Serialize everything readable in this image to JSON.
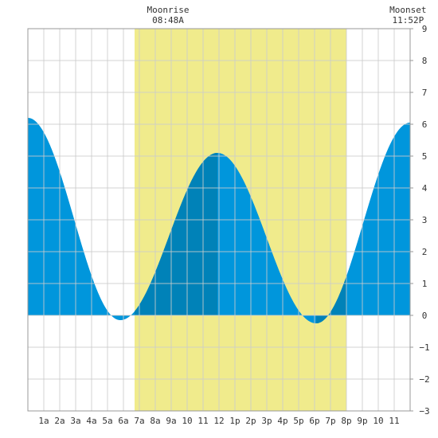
{
  "chart_data": {
    "type": "area",
    "title": "",
    "xlabel": "",
    "ylabel": "",
    "x_unit": "hour of day",
    "xlim": [
      0,
      24
    ],
    "ylim": [
      -3,
      9
    ],
    "y_ticks": [
      -3,
      -2,
      -1,
      0,
      1,
      2,
      3,
      4,
      5,
      6,
      7,
      8,
      9
    ],
    "x_tick_labels": [
      {
        "hour": 1,
        "label": "1a"
      },
      {
        "hour": 2,
        "label": "2a"
      },
      {
        "hour": 3,
        "label": "3a"
      },
      {
        "hour": 4,
        "label": "4a"
      },
      {
        "hour": 5,
        "label": "5a"
      },
      {
        "hour": 6,
        "label": "6a"
      },
      {
        "hour": 7,
        "label": "7a"
      },
      {
        "hour": 8,
        "label": "8a"
      },
      {
        "hour": 9,
        "label": "9a"
      },
      {
        "hour": 10,
        "label": "10"
      },
      {
        "hour": 11,
        "label": "11"
      },
      {
        "hour": 12,
        "label": "12"
      },
      {
        "hour": 13,
        "label": "1p"
      },
      {
        "hour": 14,
        "label": "2p"
      },
      {
        "hour": 15,
        "label": "3p"
      },
      {
        "hour": 16,
        "label": "4p"
      },
      {
        "hour": 17,
        "label": "5p"
      },
      {
        "hour": 18,
        "label": "6p"
      },
      {
        "hour": 19,
        "label": "7p"
      },
      {
        "hour": 20,
        "label": "8p"
      },
      {
        "hour": 21,
        "label": "9p"
      },
      {
        "hour": 22,
        "label": "10"
      },
      {
        "hour": 23,
        "label": "11"
      }
    ],
    "grid": true,
    "daylight": {
      "start_hour": 6.7,
      "end_hour": 20.0
    },
    "tide_extremes": [
      {
        "hour": 0.0,
        "value": 6.2
      },
      {
        "hour": 5.8,
        "value": -0.15
      },
      {
        "hour": 11.9,
        "value": 5.1
      },
      {
        "hour": 18.1,
        "value": -0.25
      },
      {
        "hour": 24.0,
        "value": 6.05
      }
    ],
    "series_colors": {
      "tide": "#0096dc",
      "rising_tide_daylight": "#0082b8",
      "daylight": "#f0eb8c",
      "grid": "#cccccc"
    },
    "moon_events": [
      {
        "label": "Moonrise",
        "time": "08:48A",
        "hour": 8.8
      },
      {
        "label": "Moonset",
        "time": "11:52P",
        "hour": 23.867
      }
    ]
  }
}
